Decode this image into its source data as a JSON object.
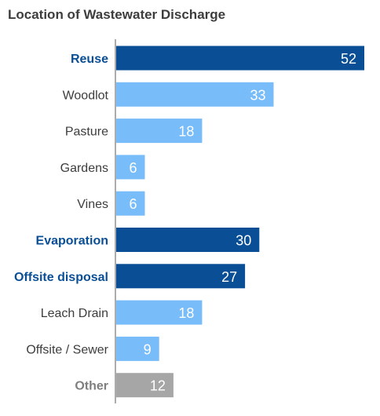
{
  "chart_data": {
    "type": "bar",
    "orientation": "horizontal",
    "title": "Location of Wastewater Discharge",
    "xlabel": "",
    "ylabel": "",
    "xlim": [
      0,
      52
    ],
    "grid": false,
    "legend": "none",
    "categories": [
      "Reuse",
      "Woodlot",
      "Pasture",
      "Gardens",
      "Vines",
      "Evaporation",
      "Offsite disposal",
      "Leach Drain",
      "Offsite / Sewer",
      "Other"
    ],
    "values": [
      52,
      33,
      18,
      6,
      6,
      30,
      27,
      18,
      9,
      12
    ],
    "groups": [
      "reuse",
      "reuse-sub",
      "reuse-sub",
      "reuse-sub",
      "reuse-sub",
      "evaporation",
      "offsite",
      "offsite-sub",
      "offsite-sub",
      "other"
    ]
  },
  "colors": {
    "title": "#3d3d3d",
    "primary_bar": "#0a4f96",
    "secondary_bar": "#78bcf9",
    "other_bar": "#a6a6a6",
    "primary_label": "#0a4f96",
    "secondary_label": "#3d3d3d",
    "other_label": "#7f7f7f",
    "axis": "#595959"
  }
}
